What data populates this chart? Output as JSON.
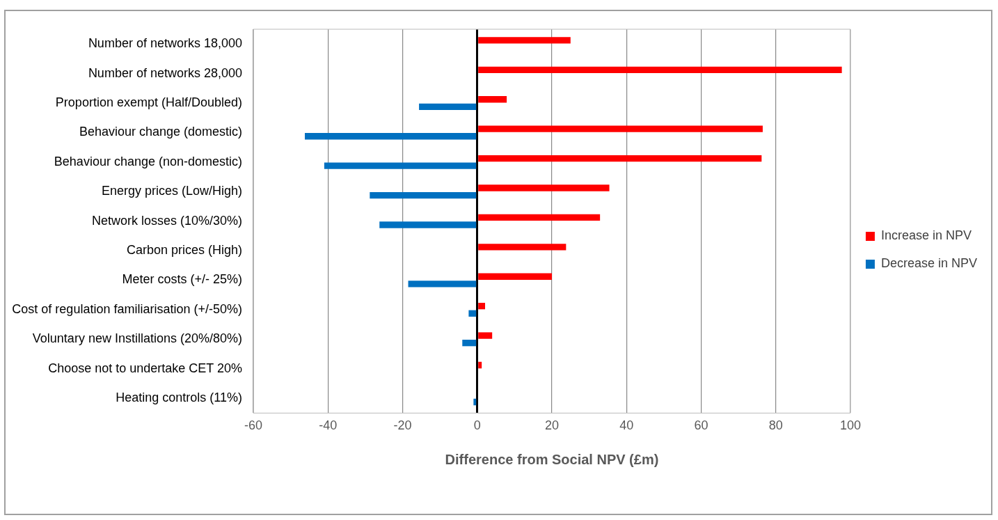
{
  "chart_data": {
    "type": "bar",
    "orientation": "horizontal",
    "xlabel": "Difference from Social NPV (£m)",
    "categories": [
      "Number of networks 18,000",
      "Number of networks 28,000",
      "Proportion exempt (Half/Doubled)",
      "Behaviour change (domestic)",
      "Behaviour change (non-domestic)",
      "Energy prices (Low/High)",
      "Network losses (10%/30%)",
      "Carbon prices (High)",
      "Meter costs (+/- 25%)",
      "Cost of regulation familiarisation (+/-50%)",
      "Voluntary new Instillations (20%/80%)",
      "Choose not to undertake CET 20%",
      "Heating controls (11%)"
    ],
    "series": [
      {
        "name": "Increase in NPV",
        "color": "#ff0000",
        "values": [
          25,
          97.7,
          7.9,
          76.5,
          76.2,
          35.4,
          32.9,
          23.8,
          20,
          2.1,
          4,
          1.2,
          null
        ]
      },
      {
        "name": "Decrease in NPV",
        "color": "#0070c0",
        "values": [
          null,
          null,
          -15.6,
          -46.2,
          -41,
          -28.8,
          -26.2,
          null,
          -18.5,
          -2.3,
          -4,
          null,
          -1
        ]
      }
    ],
    "xlim": [
      -60,
      100
    ],
    "xticks": [
      -60,
      -40,
      -20,
      0,
      20,
      40,
      60,
      80,
      100
    ],
    "grid": "x",
    "legend": "right"
  }
}
